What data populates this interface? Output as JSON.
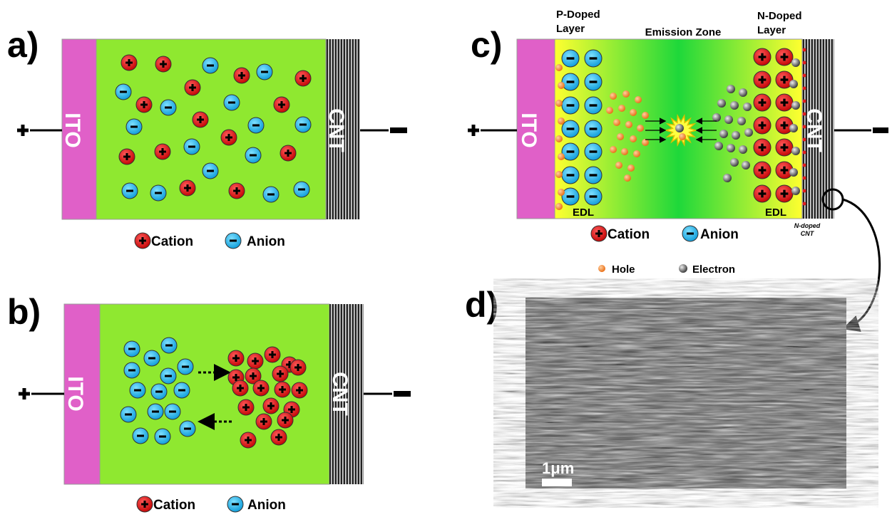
{
  "panels": [
    {
      "label": "a)",
      "left_electrode": "ITO",
      "right_electrode": "CNT",
      "legend": [
        "Cation",
        "Anion"
      ]
    },
    {
      "label": "b)",
      "left_electrode": "ITO",
      "right_electrode": "CNT",
      "legend": [
        "Cation",
        "Anion"
      ]
    },
    {
      "label": "c)",
      "left_electrode": "ITO",
      "right_electrode": "CNT",
      "p_doped_layer": [
        "P-Doped",
        "Layer"
      ],
      "emission_zone": "Emission Zone",
      "n_doped_layer": [
        "N-Doped",
        "Layer"
      ],
      "edl_left": "EDL",
      "edl_right": "EDL",
      "n_doped_cnt": [
        "N-doped",
        "CNT"
      ],
      "legend": [
        "Cation",
        "Anion",
        "Hole",
        "Electron"
      ]
    },
    {
      "label": "d)",
      "scale_bar": "1μm"
    }
  ]
}
